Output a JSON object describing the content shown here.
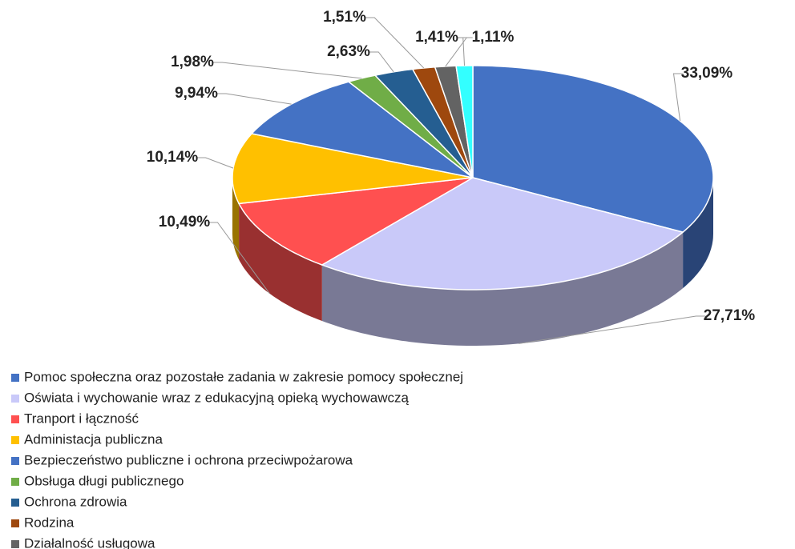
{
  "chart_data": {
    "type": "pie3d",
    "categories": [
      "Pomoc społeczna oraz pozostałe zadania w zakresie pomocy społecznej",
      "Oświata i wychowanie wraz z edukacyjną opieką wychowawczą",
      "Tranport i łączność",
      "Administacja publiczna",
      "Bezpieczeństwo publiczne i ochrona przeciwpożarowa",
      "Obsługa długi publicznego",
      "Ochrona zdrowia",
      "Rodzina",
      "Działalność usługowa",
      null
    ],
    "values": [
      33.09,
      27.71,
      10.49,
      10.14,
      9.94,
      1.98,
      2.63,
      1.51,
      1.41,
      1.11
    ],
    "value_labels": [
      "33,09%",
      "27,71%",
      "10,49%",
      "10,14%",
      "9,94%",
      "1,98%",
      "2,63%",
      "1,51%",
      "1,41%",
      "1,11%"
    ],
    "colors": [
      "#4472c4",
      "#c9c9f9",
      "#ff5050",
      "#ffc000",
      "#4472c4",
      "#70ad47",
      "#255e91",
      "#9e480e",
      "#636363",
      "#33ffff"
    ],
    "legend": "bottom"
  }
}
